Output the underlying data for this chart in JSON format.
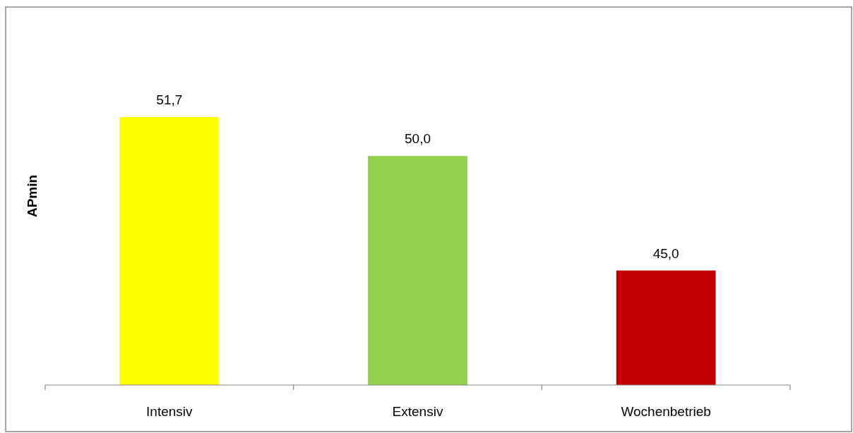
{
  "chart_data": {
    "type": "bar",
    "ylabel": "APmin",
    "categories": [
      "Intensiv",
      "Extensiv",
      "Wochenbetrieb"
    ],
    "values": [
      51.7,
      50.0,
      45.0
    ],
    "colors": [
      "#ffff00",
      "#92d050",
      "#c00000"
    ],
    "value_labels": [
      "51,7",
      "50,0",
      "45,0"
    ],
    "ylim": [
      40,
      56.5
    ],
    "tick_labels": "x"
  }
}
